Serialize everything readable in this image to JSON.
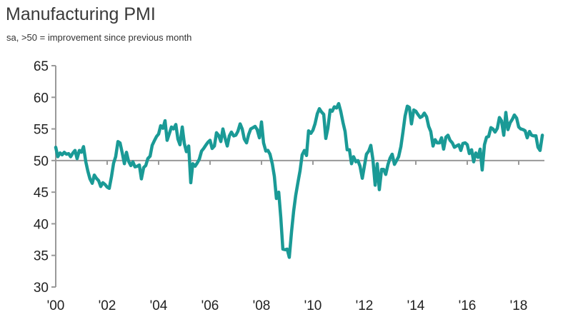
{
  "chart_data": {
    "type": "line",
    "title": "Manufacturing PMI",
    "subtitle": "sa, >50 = improvement since previous month",
    "ylim": [
      30,
      65
    ],
    "yticks": [
      30,
      35,
      40,
      45,
      50,
      55,
      60,
      65
    ],
    "xlim": [
      2000.0,
      2019.0
    ],
    "xticks": [
      {
        "value": 2000,
        "label": "'00"
      },
      {
        "value": 2002,
        "label": "'02"
      },
      {
        "value": 2004,
        "label": "'04"
      },
      {
        "value": 2006,
        "label": "'06"
      },
      {
        "value": 2008,
        "label": "'08"
      },
      {
        "value": 2010,
        "label": "'10"
      },
      {
        "value": 2012,
        "label": "'12"
      },
      {
        "value": 2014,
        "label": "'14"
      },
      {
        "value": 2016,
        "label": "'16"
      },
      {
        "value": 2018,
        "label": "'18"
      }
    ],
    "baseline": 50,
    "grid": false,
    "line_color": "#1a9a96",
    "axis_color": "#999999",
    "series": [
      {
        "x": [
          2000.0,
          2000.08,
          2000.17,
          2000.25,
          2000.33,
          2000.42,
          2000.5,
          2000.58,
          2000.67,
          2000.75,
          2000.83,
          2000.92,
          2001.0,
          2001.08,
          2001.17,
          2001.25,
          2001.33,
          2001.42,
          2001.5,
          2001.58,
          2001.67,
          2001.75,
          2001.83,
          2001.92,
          2002.0,
          2002.08,
          2002.17,
          2002.25,
          2002.33,
          2002.42,
          2002.5,
          2002.58,
          2002.67,
          2002.75,
          2002.83,
          2002.92,
          2003.0,
          2003.08,
          2003.17,
          2003.25,
          2003.33,
          2003.42,
          2003.5,
          2003.58,
          2003.67,
          2003.75,
          2003.83,
          2003.92,
          2004.0,
          2004.08,
          2004.17,
          2004.25,
          2004.33,
          2004.42,
          2004.5,
          2004.58,
          2004.67,
          2004.75,
          2004.83,
          2004.92,
          2005.0,
          2005.08,
          2005.17,
          2005.25,
          2005.33,
          2005.42,
          2005.5,
          2005.58,
          2005.67,
          2005.75,
          2005.83,
          2005.92,
          2006.0,
          2006.08,
          2006.17,
          2006.25,
          2006.33,
          2006.42,
          2006.5,
          2006.58,
          2006.67,
          2006.75,
          2006.83,
          2006.92,
          2007.0,
          2007.08,
          2007.17,
          2007.25,
          2007.33,
          2007.42,
          2007.5,
          2007.58,
          2007.67,
          2007.75,
          2007.83,
          2007.92,
          2008.0,
          2008.08,
          2008.17,
          2008.25,
          2008.33,
          2008.42,
          2008.5,
          2008.58,
          2008.67,
          2008.75,
          2008.83,
          2008.92,
          2009.0,
          2009.08,
          2009.17,
          2009.25,
          2009.33,
          2009.42,
          2009.5,
          2009.58,
          2009.67,
          2009.75,
          2009.83,
          2009.92,
          2010.0,
          2010.08,
          2010.17,
          2010.25,
          2010.33,
          2010.42,
          2010.5,
          2010.58,
          2010.67,
          2010.75,
          2010.83,
          2010.92,
          2011.0,
          2011.08,
          2011.17,
          2011.25,
          2011.33,
          2011.42,
          2011.5,
          2011.58,
          2011.67,
          2011.75,
          2011.83,
          2011.92,
          2012.0,
          2012.08,
          2012.17,
          2012.25,
          2012.33,
          2012.42,
          2012.5,
          2012.58,
          2012.67,
          2012.75,
          2012.83,
          2012.92,
          2013.0,
          2013.08,
          2013.17,
          2013.25,
          2013.33,
          2013.42,
          2013.5,
          2013.58,
          2013.67,
          2013.75,
          2013.83,
          2013.92,
          2014.0,
          2014.08,
          2014.17,
          2014.25,
          2014.33,
          2014.42,
          2014.5,
          2014.58,
          2014.67,
          2014.75,
          2014.83,
          2014.92,
          2015.0,
          2015.08,
          2015.17,
          2015.25,
          2015.33,
          2015.42,
          2015.5,
          2015.58,
          2015.67,
          2015.75,
          2015.83,
          2015.92,
          2016.0,
          2016.08,
          2016.17,
          2016.25,
          2016.33,
          2016.42,
          2016.5,
          2016.58,
          2016.67,
          2016.75,
          2016.83,
          2016.92,
          2017.0,
          2017.08,
          2017.17,
          2017.25,
          2017.33,
          2017.42,
          2017.5,
          2017.58,
          2017.67,
          2017.75,
          2017.83,
          2017.92,
          2018.0,
          2018.08,
          2018.17,
          2018.25,
          2018.33,
          2018.42,
          2018.5,
          2018.58,
          2018.67,
          2018.75,
          2018.83,
          2018.92
        ],
        "y": [
          52.1,
          50.6,
          51.2,
          50.9,
          51.3,
          51.0,
          51.1,
          50.6,
          51.2,
          51.6,
          50.3,
          51.6,
          51.3,
          52.2,
          49.8,
          48.3,
          47.1,
          46.4,
          47.7,
          47.2,
          46.8,
          45.9,
          46.5,
          46.2,
          45.8,
          45.6,
          47.5,
          49.6,
          50.6,
          53.0,
          52.8,
          51.3,
          49.5,
          51.3,
          49.9,
          49.2,
          49.8,
          49.0,
          49.1,
          49.3,
          47.1,
          48.9,
          49.2,
          50.3,
          50.7,
          52.4,
          53.1,
          53.8,
          54.2,
          55.5,
          55.1,
          56.3,
          53.2,
          54.3,
          55.3,
          55.0,
          55.7,
          53.4,
          52.5,
          55.3,
          52.7,
          51.4,
          52.3,
          46.5,
          49.5,
          49.1,
          49.6,
          50.2,
          51.5,
          51.9,
          52.4,
          52.9,
          53.2,
          51.9,
          52.3,
          54.4,
          54.0,
          53.0,
          55.0,
          53.6,
          52.3,
          53.9,
          54.5,
          53.9,
          54.0,
          54.6,
          55.8,
          55.0,
          53.4,
          52.8,
          54.1,
          55.0,
          55.2,
          55.4,
          54.9,
          53.6,
          56.1,
          52.8,
          51.5,
          51.6,
          51.0,
          49.5,
          47.5,
          44.0,
          45.0,
          41.0,
          36.0,
          35.9,
          36.0,
          34.7,
          38.8,
          42.0,
          44.5,
          46.6,
          48.4,
          50.9,
          51.6,
          50.8,
          54.7,
          54.3,
          54.8,
          55.8,
          57.4,
          58.2,
          57.7,
          57.3,
          53.5,
          55.1,
          58.0,
          57.8,
          58.5,
          58.3,
          59.0,
          57.8,
          56.0,
          54.6,
          51.7,
          51.7,
          49.5,
          50.6,
          49.8,
          50.0,
          49.1,
          47.2,
          49.1,
          51.0,
          51.5,
          52.4,
          50.2,
          46.1,
          49.5,
          45.4,
          48.6,
          48.6,
          47.8,
          49.4,
          50.4,
          51.0,
          49.4,
          50.0,
          50.6,
          52.2,
          54.5,
          57.0,
          58.6,
          58.4,
          55.8,
          58.0,
          57.8,
          57.3,
          56.8,
          57.0,
          57.5,
          56.9,
          55.4,
          54.6,
          52.3,
          53.3,
          52.8,
          52.8,
          53.6,
          51.8,
          53.7,
          54.0,
          53.2,
          52.8,
          52.1,
          52.3,
          52.5,
          51.6,
          52.7,
          52.8,
          52.5,
          51.1,
          51.7,
          49.8,
          51.2,
          50.5,
          51.8,
          48.5,
          52.5,
          53.7,
          53.8,
          55.2,
          55.0,
          54.5,
          55.1,
          56.8,
          56.3,
          54.0,
          57.6,
          54.9,
          56.0,
          56.5,
          57.2,
          56.7,
          55.3,
          55.0,
          54.9,
          54.7,
          53.6,
          54.6,
          54.0,
          53.9,
          53.9,
          52.1,
          51.6,
          54.0
        ]
      }
    ]
  }
}
